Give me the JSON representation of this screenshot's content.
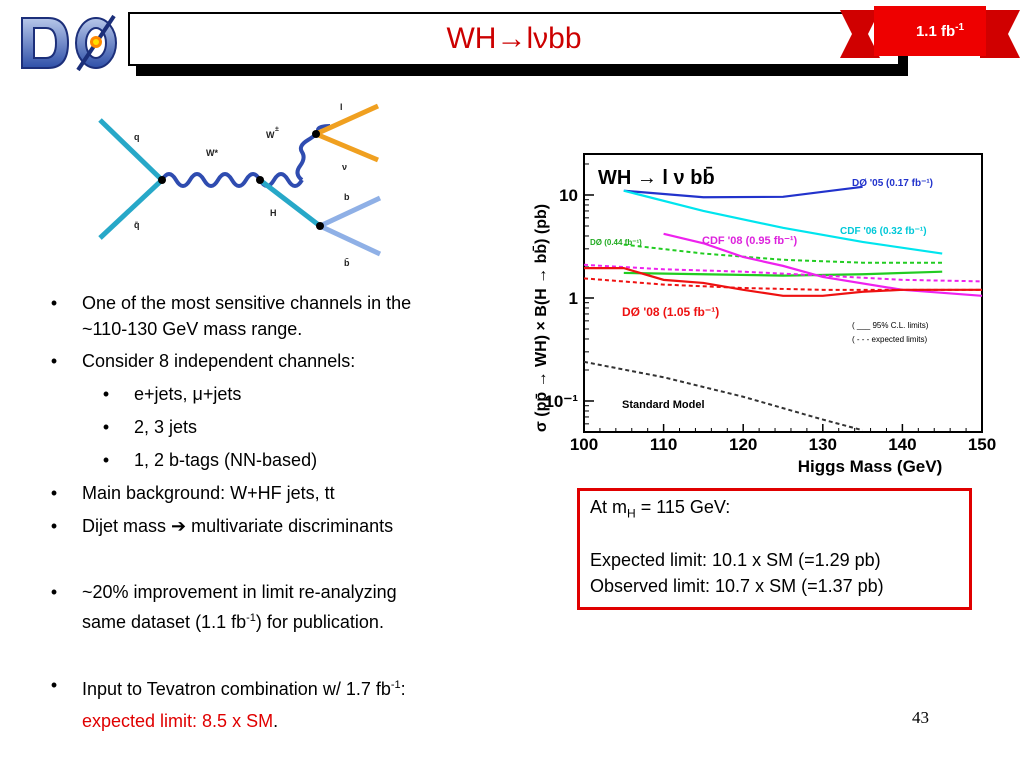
{
  "header": {
    "logo_label": "DØ",
    "title_prefix": "WH",
    "title_arrow": "→",
    "title_suffix": "lνbb",
    "lumi_value": "1.1 fb",
    "lumi_exp": "-1"
  },
  "feynman": {
    "labels": {
      "q_top": "q",
      "q_bottom": "q̄",
      "w_star": "W*",
      "w": "W",
      "w_charge": "±",
      "l": "l",
      "nu": "ν",
      "h": "H",
      "b": "b",
      "b_bar": "b̄"
    }
  },
  "bullets": [
    {
      "text": "One of the most sensitive channels in the",
      "cont": "~110-130 GeV mass range."
    },
    {
      "text": "Consider 8 independent channels:"
    },
    {
      "sub": "e+jets, μ+jets"
    },
    {
      "sub": "2, 3 jets"
    },
    {
      "sub": "1, 2 b-tags (NN-based)"
    },
    {
      "text": "Main background: W+HF jets, tt"
    },
    {
      "text_pre": "Dijet mass ",
      "arrow": "➔",
      "text_post": " multivariate discriminants"
    },
    {
      "text": "~20% improvement in limit re-analyzing",
      "cont_pre": "same dataset (1.1 fb",
      "cont_exp": "-1",
      "cont_post": ") for publication."
    },
    {
      "text_pre": "Input to Tevatron combination w/ 1.7 fb",
      "text_exp": "-1",
      "text_post": ":",
      "highlight": "expected limit: 8.5 x SM",
      "after": "."
    }
  ],
  "result_box": {
    "line1_pre": "At m",
    "line1_sub": "H",
    "line1_post": " = 115 GeV:",
    "line2": "Expected limit: 10.1 x SM (=1.29 pb)",
    "line3": "Observed limit: 10.7 x SM (=1.37 pb)"
  },
  "page_number": "43",
  "chart_data": {
    "type": "line",
    "title": "WH → l ν bb̄",
    "xlabel": "Higgs Mass (GeV)",
    "ylabel": "σ (pp̄ → WH) × B(H → bb̄) (pb)",
    "xlim": [
      100,
      150
    ],
    "ylim": [
      0.05,
      25
    ],
    "yscale": "log",
    "x_ticks": [
      "100",
      "110",
      "120",
      "130",
      "140",
      "150"
    ],
    "y_ticks": [
      {
        "value": 10,
        "label": "10"
      },
      {
        "value": 1,
        "label": "1"
      },
      {
        "value": 0.1,
        "label": "10⁻¹"
      }
    ],
    "legend_style": [
      "( ___  95% C.L. limits)",
      "( - - -  expected limits)"
    ],
    "series": [
      {
        "name": "DØ '05  (0.17 fb⁻¹)",
        "color": "#2233cc",
        "style": "solid",
        "x": [
          105,
          115,
          125,
          135
        ],
        "y": [
          11,
          9.5,
          9.6,
          12
        ]
      },
      {
        "name": "CDF '06  (0.32 fb⁻¹)",
        "color": "#00e5ee",
        "style": "solid",
        "x": [
          105,
          115,
          125,
          135,
          145
        ],
        "y": [
          11,
          7.0,
          4.8,
          3.5,
          2.7
        ]
      },
      {
        "name": "DØ (0.44 fb⁻¹)",
        "color": "#22cc22",
        "style": "solid",
        "x": [
          105,
          115,
          125,
          135,
          145
        ],
        "y": [
          1.75,
          1.7,
          1.65,
          1.7,
          1.8
        ]
      },
      {
        "name": "DØ (0.44 fb⁻¹) expected",
        "color": "#22cc22",
        "style": "dashed",
        "x": [
          105,
          115,
          125,
          135,
          145
        ],
        "y": [
          3.3,
          2.7,
          2.35,
          2.2,
          2.2
        ]
      },
      {
        "name": "CDF '08 (0.95 fb⁻¹)",
        "color": "#ee22ee",
        "style": "solid",
        "x": [
          110,
          115,
          120,
          125,
          130,
          140,
          150
        ],
        "y": [
          4.2,
          3.4,
          2.5,
          2.05,
          1.6,
          1.2,
          1.05
        ]
      },
      {
        "name": "CDF '08 (0.95 fb⁻¹) expected",
        "color": "#ee22ee",
        "style": "dashed",
        "x": [
          100,
          110,
          120,
          130,
          140,
          150
        ],
        "y": [
          2.1,
          1.9,
          1.8,
          1.65,
          1.5,
          1.45
        ]
      },
      {
        "name": "DØ '08 (1.05 fb⁻¹)",
        "color": "#ee1111",
        "style": "solid",
        "x": [
          100,
          105,
          110,
          115,
          120,
          125,
          130,
          135,
          140,
          145,
          150
        ],
        "y": [
          1.95,
          1.95,
          1.5,
          1.4,
          1.2,
          1.05,
          1.05,
          1.15,
          1.2,
          1.2,
          1.2
        ]
      },
      {
        "name": "DØ '08 (1.05 fb⁻¹) expected",
        "color": "#ee1111",
        "style": "dashed",
        "x": [
          100,
          110,
          120,
          130,
          140,
          150
        ],
        "y": [
          1.55,
          1.35,
          1.25,
          1.2,
          1.2,
          1.2
        ]
      },
      {
        "name": "Standard Model",
        "color": "#333333",
        "style": "dashed",
        "x": [
          100,
          110,
          120,
          130,
          135
        ],
        "y": [
          0.24,
          0.17,
          0.11,
          0.066,
          0.052
        ]
      }
    ]
  }
}
